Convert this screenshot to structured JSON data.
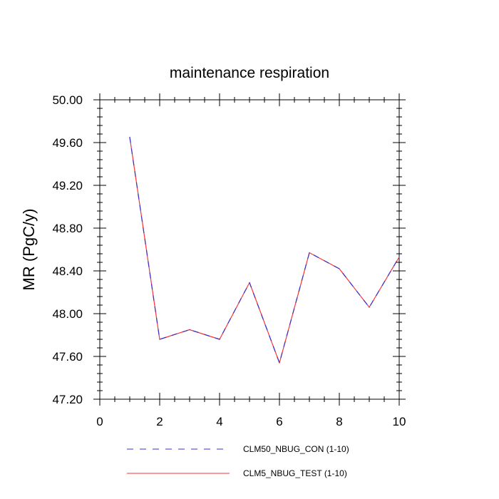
{
  "chart_data": {
    "type": "line",
    "title": "maintenance respiration",
    "xlabel": "",
    "ylabel": "MR  (PgC/y)",
    "xlim": [
      0,
      10
    ],
    "ylim": [
      47.2,
      50.0
    ],
    "xticks": [
      0,
      2,
      4,
      6,
      8,
      10
    ],
    "xtick_labels": [
      "0",
      "2",
      "4",
      "6",
      "8",
      "10"
    ],
    "yticks": [
      47.2,
      47.6,
      48.0,
      48.4,
      48.8,
      49.2,
      49.6,
      50.0
    ],
    "ytick_labels": [
      "47.20",
      "47.60",
      "48.00",
      "48.40",
      "48.80",
      "49.20",
      "49.60",
      "50.00"
    ],
    "grid": false,
    "legend_position": "bottom",
    "x": [
      1,
      2,
      3,
      4,
      5,
      6,
      7,
      8,
      9,
      10
    ],
    "series": [
      {
        "name": "CLM50_NBUG_CON (1-10)",
        "color": "#3333cc",
        "style": "dashed",
        "values": [
          49.65,
          47.76,
          47.85,
          47.76,
          48.29,
          47.54,
          48.57,
          48.42,
          48.06,
          48.53
        ]
      },
      {
        "name": "CLM5_NBUG_TEST (1-10)",
        "color": "#ff3333",
        "style": "solid",
        "values": [
          49.65,
          47.76,
          47.85,
          47.76,
          48.29,
          47.54,
          48.57,
          48.42,
          48.06,
          48.53
        ]
      }
    ]
  }
}
